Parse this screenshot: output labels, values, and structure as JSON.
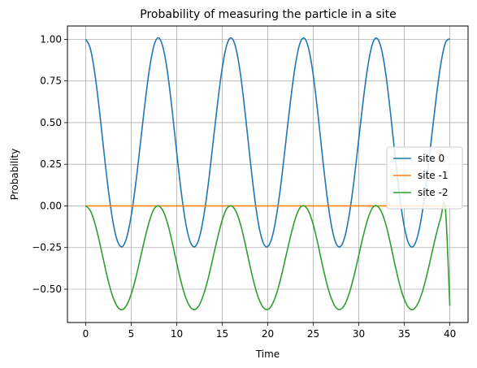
{
  "chart_data": {
    "type": "line",
    "title": "Probability of measuring the particle in a site",
    "xlabel": "Time",
    "ylabel": "Probability",
    "xlim": [
      -2,
      42
    ],
    "ylim": [
      -0.7,
      1.08
    ],
    "xticks": [
      0,
      5,
      10,
      15,
      20,
      25,
      30,
      35,
      40
    ],
    "xtick_labels": [
      "0",
      "5",
      "10",
      "15",
      "20",
      "25",
      "30",
      "35",
      "40"
    ],
    "yticks": [
      1.0,
      0.75,
      0.5,
      0.25,
      0.0,
      -0.25,
      -0.5
    ],
    "ytick_labels": [
      "1.00",
      "0.75",
      "0.50",
      "0.25",
      "0.00",
      "−0.25",
      "−0.50"
    ],
    "grid": true,
    "legend_position": "center-right",
    "series": [
      {
        "name": "site 0",
        "color": "#1f77b4",
        "x": [
          0,
          0.5,
          1,
          1.5,
          2,
          2.5,
          3,
          3.5,
          4,
          4.5,
          5,
          5.5,
          6,
          6.5,
          7,
          7.5,
          8,
          8.5,
          9,
          9.5,
          10,
          10.5,
          11,
          11.5,
          12,
          12.5,
          13,
          13.5,
          14,
          14.5,
          15,
          15.5,
          16,
          16.5,
          17,
          17.5,
          18,
          18.5,
          19,
          19.5,
          20,
          20.5,
          21,
          21.5,
          22,
          22.5,
          23,
          23.5,
          24,
          24.5,
          25,
          25.5,
          26,
          26.5,
          27,
          27.5,
          28,
          28.5,
          29,
          29.5,
          30,
          30.5,
          31,
          31.5,
          32,
          32.5,
          33,
          33.5,
          34,
          34.5,
          35,
          35.5,
          36,
          36.5,
          37,
          37.5,
          38,
          38.5,
          39,
          39.5,
          40
        ],
        "y": [
          1.0,
          0.947,
          0.798,
          0.579,
          0.329,
          0.092,
          -0.096,
          -0.212,
          -0.245,
          -0.191,
          -0.06,
          0.134,
          0.37,
          0.609,
          0.819,
          0.962,
          1.009,
          0.95,
          0.799,
          0.574,
          0.32,
          0.082,
          -0.107,
          -0.217,
          -0.245,
          -0.188,
          -0.051,
          0.146,
          0.383,
          0.621,
          0.828,
          0.966,
          1.008,
          0.947,
          0.792,
          0.566,
          0.312,
          0.073,
          -0.113,
          -0.221,
          -0.244,
          -0.183,
          -0.044,
          0.155,
          0.393,
          0.63,
          0.835,
          0.97,
          1.007,
          0.942,
          0.784,
          0.557,
          0.301,
          0.063,
          -0.12,
          -0.225,
          -0.243,
          -0.178,
          -0.036,
          0.164,
          0.404,
          0.64,
          0.842,
          0.973,
          1.006,
          0.938,
          0.777,
          0.548,
          0.292,
          0.054,
          -0.126,
          -0.228,
          -0.242,
          -0.173,
          -0.028,
          0.174,
          0.415,
          0.649,
          0.849,
          0.976,
          1.004
        ]
      },
      {
        "name": "site -1",
        "color": "#ff7f0e",
        "x": [
          0,
          40
        ],
        "y": [
          0.0,
          0.0
        ]
      },
      {
        "name": "site -2",
        "color": "#2ca02c",
        "x": [
          0,
          0.5,
          1,
          1.5,
          2,
          2.5,
          3,
          3.5,
          4,
          4.5,
          5,
          5.5,
          6,
          6.5,
          7,
          7.5,
          8,
          8.5,
          9,
          9.5,
          10,
          10.5,
          11,
          11.5,
          12,
          12.5,
          13,
          13.5,
          14,
          14.5,
          15,
          15.5,
          16,
          16.5,
          17,
          17.5,
          18,
          18.5,
          19,
          19.5,
          20,
          20.5,
          21,
          21.5,
          22,
          22.5,
          23,
          23.5,
          24,
          24.5,
          25,
          25.5,
          26,
          26.5,
          27,
          27.5,
          28,
          28.5,
          29,
          29.5,
          30,
          30.5,
          31,
          31.5,
          32,
          32.5,
          33,
          33.5,
          34,
          34.5,
          35,
          35.5,
          36,
          36.5,
          37,
          37.5,
          38,
          38.5,
          39,
          39.5,
          40
        ],
        "y": [
          0.0,
          -0.027,
          -0.102,
          -0.211,
          -0.336,
          -0.454,
          -0.548,
          -0.606,
          -0.623,
          -0.596,
          -0.53,
          -0.433,
          -0.315,
          -0.196,
          -0.091,
          -0.019,
          0.0,
          -0.03,
          -0.105,
          -0.217,
          -0.343,
          -0.46,
          -0.552,
          -0.608,
          -0.622,
          -0.593,
          -0.524,
          -0.426,
          -0.307,
          -0.189,
          -0.085,
          -0.016,
          0.0,
          -0.032,
          -0.109,
          -0.222,
          -0.348,
          -0.465,
          -0.555,
          -0.609,
          -0.622,
          -0.59,
          -0.52,
          -0.42,
          -0.301,
          -0.183,
          -0.081,
          -0.014,
          0.0,
          -0.034,
          -0.113,
          -0.227,
          -0.354,
          -0.47,
          -0.558,
          -0.611,
          -0.621,
          -0.588,
          -0.516,
          -0.414,
          -0.295,
          -0.177,
          -0.077,
          -0.012,
          0.0,
          -0.037,
          -0.117,
          -0.233,
          -0.36,
          -0.475,
          -0.561,
          -0.612,
          -0.621,
          -0.585,
          -0.512,
          -0.409,
          -0.29,
          -0.172,
          -0.072,
          -0.01,
          -0.6
        ]
      }
    ]
  }
}
